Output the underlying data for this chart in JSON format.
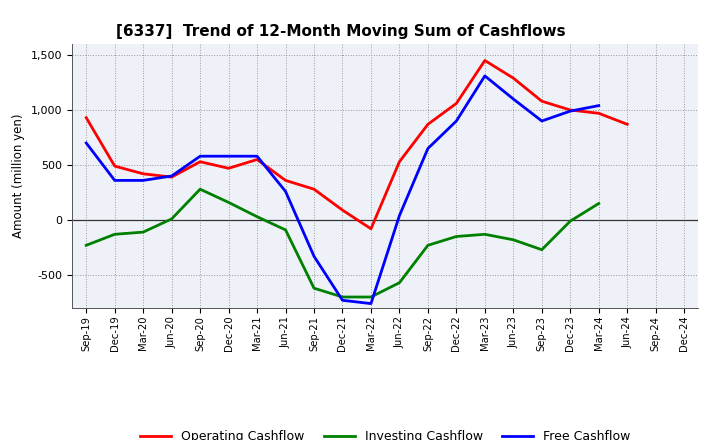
{
  "title": "[6337]  Trend of 12-Month Moving Sum of Cashflows",
  "ylabel": "Amount (million yen)",
  "ylim": [
    -800,
    1600
  ],
  "yticks": [
    -500,
    0,
    500,
    1000,
    1500
  ],
  "background_color": "#ffffff",
  "plot_bg_color": "#eef2f8",
  "grid_color": "#999999",
  "x_labels": [
    "Sep-19",
    "Dec-19",
    "Mar-20",
    "Jun-20",
    "Sep-20",
    "Dec-20",
    "Mar-21",
    "Jun-21",
    "Sep-21",
    "Dec-21",
    "Mar-22",
    "Jun-22",
    "Sep-22",
    "Dec-22",
    "Mar-23",
    "Jun-23",
    "Sep-23",
    "Dec-23",
    "Mar-24",
    "Jun-24",
    "Sep-24",
    "Dec-24"
  ],
  "operating": [
    930,
    490,
    420,
    390,
    530,
    470,
    550,
    360,
    280,
    90,
    -80,
    530,
    870,
    1060,
    1450,
    1290,
    1080,
    1000,
    970,
    870,
    null,
    null
  ],
  "investing": [
    -230,
    -130,
    -110,
    10,
    280,
    160,
    30,
    -90,
    -620,
    -700,
    -700,
    -570,
    -230,
    -150,
    -130,
    -180,
    -270,
    -10,
    150,
    null,
    null,
    null
  ],
  "free": [
    700,
    360,
    360,
    400,
    580,
    580,
    580,
    260,
    -330,
    -730,
    -760,
    40,
    650,
    900,
    1310,
    1100,
    900,
    990,
    1040,
    null,
    null,
    null
  ],
  "operating_color": "#ff0000",
  "investing_color": "#008000",
  "free_color": "#0000ff",
  "line_width": 2.0,
  "legend_labels": [
    "Operating Cashflow",
    "Investing Cashflow",
    "Free Cashflow"
  ]
}
